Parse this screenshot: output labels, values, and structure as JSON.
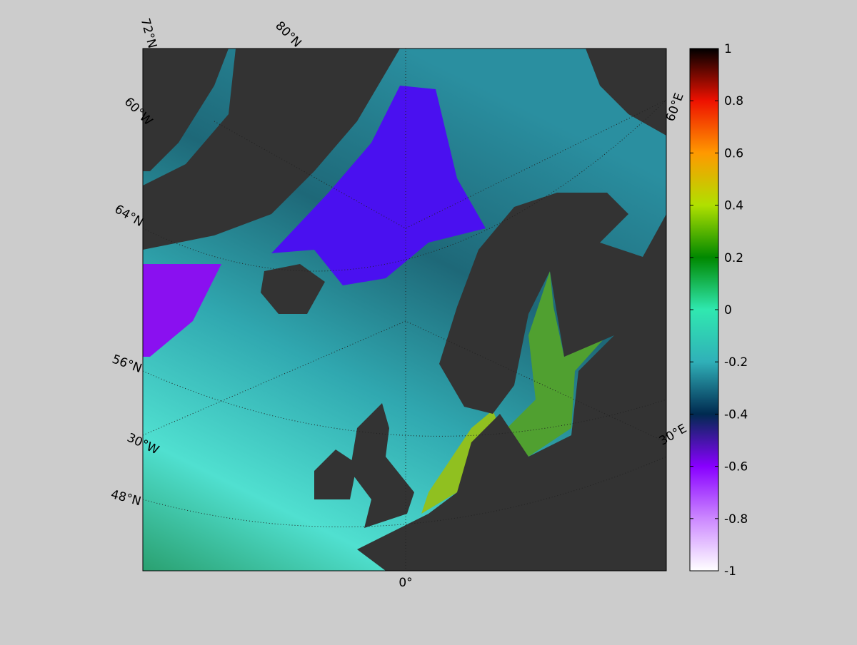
{
  "map": {
    "graticule_labels": [
      "72°N",
      "80°N",
      "60°W",
      "64°N",
      "56°N",
      "30°W",
      "48°N",
      "0°",
      "60°E",
      "30°E"
    ],
    "colorbar": {
      "lim": [
        -1,
        1
      ],
      "ticks": [
        -1,
        -0.8,
        -0.6,
        -0.4,
        -0.2,
        0,
        0.2,
        0.4,
        0.6,
        0.8,
        1
      ],
      "colors": [
        "#ffffff",
        "#cc88ff",
        "#8800ff",
        "#002a50",
        "#30b0b8",
        "#30e8b0",
        "#008800",
        "#b0e000",
        "#ff9900",
        "#ee1100",
        "#000000"
      ]
    }
  }
}
